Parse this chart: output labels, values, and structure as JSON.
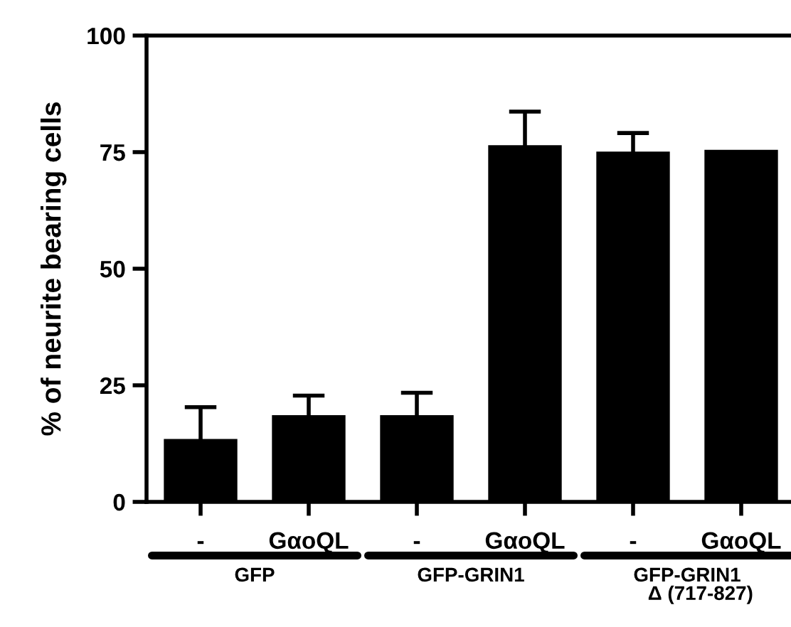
{
  "chart_data": {
    "type": "bar",
    "ylabel": "% of neurite bearing cells",
    "categories": [
      "-",
      "GαoQL",
      "-",
      "GαoQL",
      "-",
      "GαoQL"
    ],
    "values": [
      13.5,
      18.6,
      18.6,
      76.5,
      75.1,
      75.5
    ],
    "errors": [
      6.8,
      4.2,
      4.8,
      7.2,
      4.0,
      null
    ],
    "color": "#000000",
    "ylim": [
      0,
      100
    ],
    "yticks": [
      0,
      25,
      50,
      75,
      100
    ],
    "grid": false,
    "annotations": [
      "GFP",
      "GFP-GRIN1",
      "GFP-GRIN1\n     Δ (717-827)"
    ]
  }
}
